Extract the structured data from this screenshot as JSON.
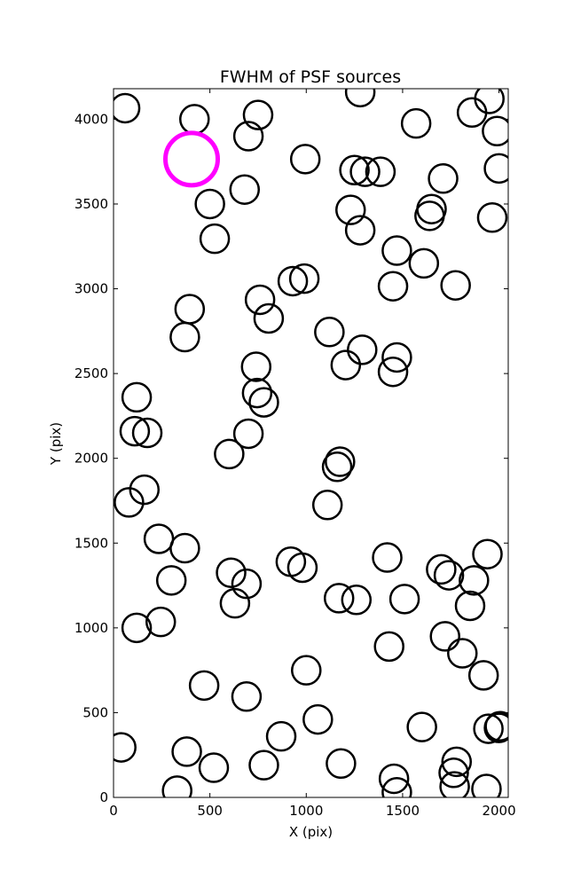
{
  "chart_data": {
    "type": "scatter",
    "title": "FWHM of PSF sources",
    "xlabel": "X (pix)",
    "ylabel": "Y (pix)",
    "xlim": [
      0,
      2048
    ],
    "ylim": [
      0,
      4180
    ],
    "xticks": [
      0,
      500,
      1000,
      1500,
      2000
    ],
    "yticks": [
      0,
      500,
      1000,
      1500,
      2000,
      2500,
      3000,
      3500,
      4000
    ],
    "grid": false,
    "series": [
      {
        "marker": "open-circle",
        "color": "#000000",
        "points": [
          {
            "x": 60,
            "y": 4065
          },
          {
            "x": 420,
            "y": 4000
          },
          {
            "x": 750,
            "y": 4025
          },
          {
            "x": 700,
            "y": 3900
          },
          {
            "x": 1280,
            "y": 4160
          },
          {
            "x": 1570,
            "y": 3975
          },
          {
            "x": 1860,
            "y": 4040
          },
          {
            "x": 1950,
            "y": 4120
          },
          {
            "x": 1990,
            "y": 3930
          },
          {
            "x": 995,
            "y": 3765
          },
          {
            "x": 1250,
            "y": 3700
          },
          {
            "x": 1305,
            "y": 3690
          },
          {
            "x": 1385,
            "y": 3690
          },
          {
            "x": 1710,
            "y": 3650
          },
          {
            "x": 2000,
            "y": 3710
          },
          {
            "x": 680,
            "y": 3585
          },
          {
            "x": 500,
            "y": 3500
          },
          {
            "x": 1230,
            "y": 3465
          },
          {
            "x": 1280,
            "y": 3345
          },
          {
            "x": 1640,
            "y": 3430
          },
          {
            "x": 1650,
            "y": 3470
          },
          {
            "x": 1965,
            "y": 3420
          },
          {
            "x": 525,
            "y": 3295
          },
          {
            "x": 1470,
            "y": 3225
          },
          {
            "x": 1610,
            "y": 3150
          },
          {
            "x": 930,
            "y": 3045
          },
          {
            "x": 990,
            "y": 3060
          },
          {
            "x": 1450,
            "y": 3015
          },
          {
            "x": 1775,
            "y": 3020
          },
          {
            "x": 760,
            "y": 2935
          },
          {
            "x": 395,
            "y": 2880
          },
          {
            "x": 805,
            "y": 2825
          },
          {
            "x": 1120,
            "y": 2745
          },
          {
            "x": 370,
            "y": 2715
          },
          {
            "x": 1290,
            "y": 2640
          },
          {
            "x": 1470,
            "y": 2595
          },
          {
            "x": 1205,
            "y": 2550
          },
          {
            "x": 740,
            "y": 2540
          },
          {
            "x": 1450,
            "y": 2510
          },
          {
            "x": 745,
            "y": 2385
          },
          {
            "x": 780,
            "y": 2330
          },
          {
            "x": 120,
            "y": 2360
          },
          {
            "x": 110,
            "y": 2160
          },
          {
            "x": 175,
            "y": 2150
          },
          {
            "x": 700,
            "y": 2145
          },
          {
            "x": 600,
            "y": 2025
          },
          {
            "x": 1175,
            "y": 1980
          },
          {
            "x": 1160,
            "y": 1950
          },
          {
            "x": 160,
            "y": 1815
          },
          {
            "x": 80,
            "y": 1740
          },
          {
            "x": 1110,
            "y": 1725
          },
          {
            "x": 235,
            "y": 1525
          },
          {
            "x": 370,
            "y": 1470
          },
          {
            "x": 1420,
            "y": 1415
          },
          {
            "x": 1940,
            "y": 1435
          },
          {
            "x": 920,
            "y": 1390
          },
          {
            "x": 980,
            "y": 1355
          },
          {
            "x": 1700,
            "y": 1345
          },
          {
            "x": 1740,
            "y": 1310
          },
          {
            "x": 610,
            "y": 1325
          },
          {
            "x": 300,
            "y": 1280
          },
          {
            "x": 690,
            "y": 1260
          },
          {
            "x": 1870,
            "y": 1280
          },
          {
            "x": 1170,
            "y": 1175
          },
          {
            "x": 1260,
            "y": 1165
          },
          {
            "x": 1510,
            "y": 1170
          },
          {
            "x": 630,
            "y": 1145
          },
          {
            "x": 1850,
            "y": 1130
          },
          {
            "x": 245,
            "y": 1035
          },
          {
            "x": 120,
            "y": 1000
          },
          {
            "x": 1720,
            "y": 950
          },
          {
            "x": 1430,
            "y": 890
          },
          {
            "x": 1810,
            "y": 850
          },
          {
            "x": 1000,
            "y": 750
          },
          {
            "x": 1920,
            "y": 720
          },
          {
            "x": 470,
            "y": 660
          },
          {
            "x": 690,
            "y": 595
          },
          {
            "x": 1060,
            "y": 460
          },
          {
            "x": 1600,
            "y": 415
          },
          {
            "x": 1945,
            "y": 405
          },
          {
            "x": 2000,
            "y": 410
          },
          {
            "x": 2005,
            "y": 420
          },
          {
            "x": 870,
            "y": 360
          },
          {
            "x": 40,
            "y": 295
          },
          {
            "x": 380,
            "y": 270
          },
          {
            "x": 1780,
            "y": 210
          },
          {
            "x": 1180,
            "y": 200
          },
          {
            "x": 780,
            "y": 190
          },
          {
            "x": 520,
            "y": 175
          },
          {
            "x": 1765,
            "y": 145
          },
          {
            "x": 1455,
            "y": 110
          },
          {
            "x": 1770,
            "y": 65
          },
          {
            "x": 1935,
            "y": 50
          },
          {
            "x": 330,
            "y": 40
          },
          {
            "x": 1470,
            "y": 30
          }
        ]
      },
      {
        "marker": "open-circle",
        "color": "#ff00ff",
        "points": [
          {
            "x": 405,
            "y": 3765
          }
        ]
      }
    ]
  }
}
